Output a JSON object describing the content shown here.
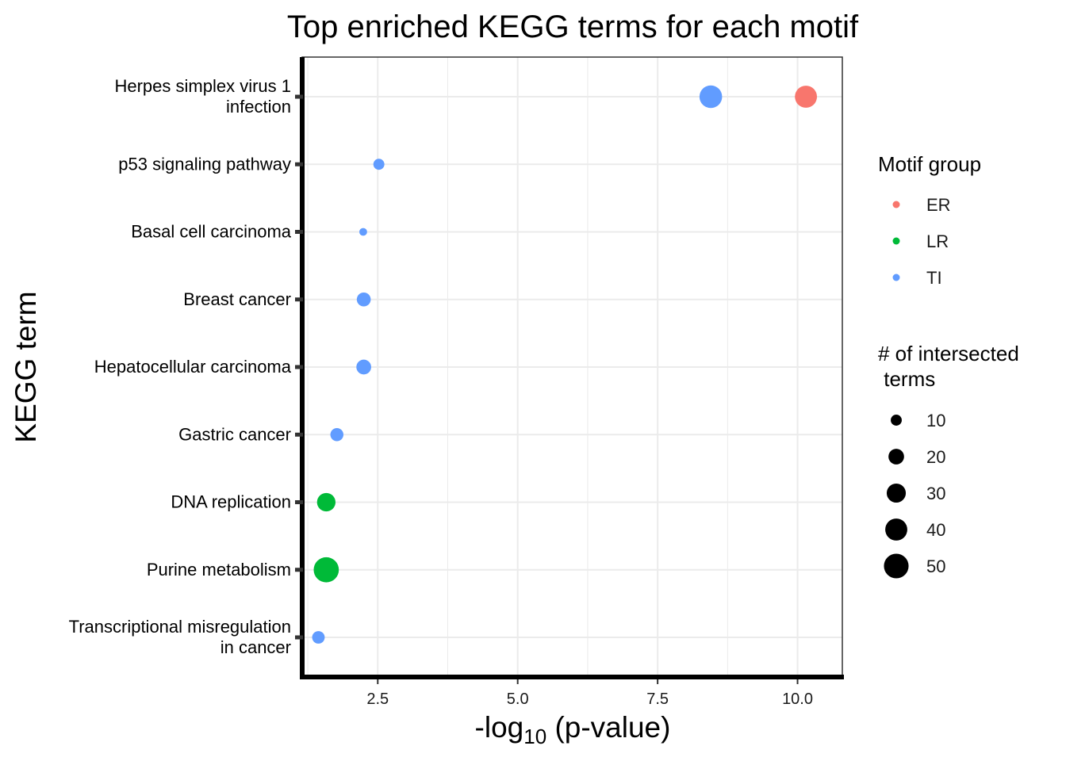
{
  "chart_data": {
    "type": "scatter",
    "title": "Top enriched KEGG terms for each motif",
    "xlabel_prefix": "-log",
    "xlabel_sub": "10",
    "xlabel_suffix": " (p-value)",
    "ylabel": "KEGG term",
    "xlim": [
      1.15,
      10.8
    ],
    "x_ticks": [
      {
        "value": 2.5,
        "label": "2.5"
      },
      {
        "value": 5.0,
        "label": "5.0"
      },
      {
        "value": 7.5,
        "label": "7.5"
      },
      {
        "value": 10.0,
        "label": "10.0"
      }
    ],
    "categories": [
      {
        "lines": [
          "Herpes simplex virus 1",
          "infection"
        ]
      },
      {
        "lines": [
          "p53 signaling pathway"
        ]
      },
      {
        "lines": [
          "Basal cell carcinoma"
        ]
      },
      {
        "lines": [
          "Breast cancer"
        ]
      },
      {
        "lines": [
          "Hepatocellular carcinoma"
        ]
      },
      {
        "lines": [
          "Gastric cancer"
        ]
      },
      {
        "lines": [
          "DNA replication"
        ]
      },
      {
        "lines": [
          "Purine metabolism"
        ]
      },
      {
        "lines": [
          "Transcriptional misregulation",
          "in cancer"
        ]
      }
    ],
    "points": [
      {
        "term": 0,
        "x": 10.15,
        "group": "ER",
        "size": 40
      },
      {
        "term": 0,
        "x": 8.45,
        "group": "TI",
        "size": 42
      },
      {
        "term": 1,
        "x": 2.52,
        "group": "TI",
        "size": 10
      },
      {
        "term": 2,
        "x": 2.24,
        "group": "TI",
        "size": 5
      },
      {
        "term": 3,
        "x": 2.25,
        "group": "TI",
        "size": 16
      },
      {
        "term": 4,
        "x": 2.25,
        "group": "TI",
        "size": 18
      },
      {
        "term": 5,
        "x": 1.77,
        "group": "TI",
        "size": 14
      },
      {
        "term": 6,
        "x": 1.58,
        "group": "LR",
        "size": 28
      },
      {
        "term": 7,
        "x": 1.58,
        "group": "LR",
        "size": 52
      },
      {
        "term": 8,
        "x": 1.44,
        "group": "TI",
        "size": 13
      }
    ],
    "color_legend": {
      "title": "Motif group",
      "items": [
        {
          "label": "ER",
          "color": "#F8766D"
        },
        {
          "label": "LR",
          "color": "#00BA38"
        },
        {
          "label": "TI",
          "color": "#619CFF"
        }
      ]
    },
    "size_legend": {
      "title_lines": [
        "# of intersected",
        " terms"
      ],
      "items": [
        {
          "label": "10",
          "value": 10
        },
        {
          "label": "20",
          "value": 20
        },
        {
          "label": "30",
          "value": 30
        },
        {
          "label": "40",
          "value": 40
        },
        {
          "label": "50",
          "value": 50
        }
      ]
    },
    "grid": true
  }
}
